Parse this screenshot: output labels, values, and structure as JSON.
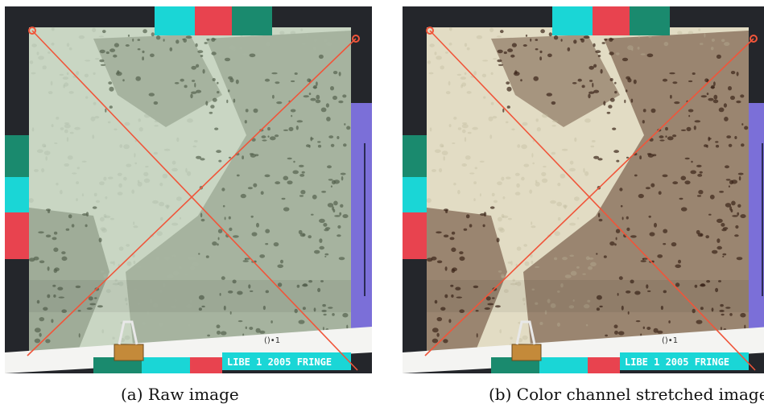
{
  "figure": {
    "panels": [
      {
        "id": "a",
        "caption": "(a)  Raw image",
        "variant": "raw",
        "slate_text": "LIBE 1 2005 FRINGE",
        "tag_text": "()•1"
      },
      {
        "id": "b",
        "caption": "(b)  Color channel stretched image",
        "variant": "stretched",
        "slate_text": "LIBE 1 2005 FRINGE",
        "tag_text": "()•1"
      }
    ],
    "colors": {
      "frame_dark": "#24262b",
      "cyan_marker": "#1ad6d6",
      "red_marker": "#e8434f",
      "green_marker": "#1a8a6e",
      "purple_ruler": "#7b6fd8",
      "string": "#f0553a",
      "sand_raw": "#c9d6c3",
      "sand_stretched": "#e2dcc4",
      "rubble_raw": "#7c8a74",
      "rubble_stretched": "#5e3e2c",
      "clip_bronze": "#c48a3a"
    }
  }
}
